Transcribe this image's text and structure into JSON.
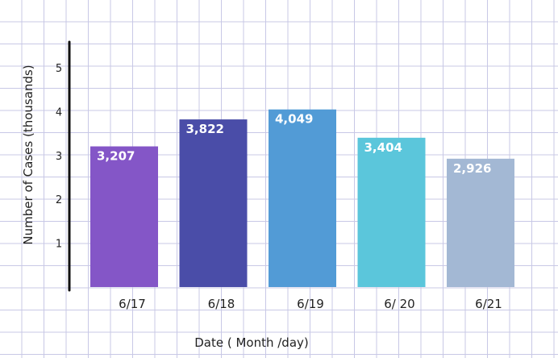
{
  "chart_data": {
    "type": "bar",
    "title": "",
    "xlabel": "Date ( Month /day)",
    "ylabel": "Number of Cases (thousands)",
    "ylim": [
      0,
      5
    ],
    "yticks": [
      "1",
      "2",
      "3",
      "4",
      "5"
    ],
    "categories": [
      "6/17",
      "6/18",
      "6/19",
      "6/ 20",
      "6/21"
    ],
    "values": [
      3.207,
      3.822,
      4.049,
      3.404,
      2.926
    ],
    "data_labels": [
      "3,207",
      "3,822",
      "4,049",
      "3,404",
      "2,926"
    ],
    "colors": [
      "#8456c7",
      "#4a4da8",
      "#529bd6",
      "#5bc6db",
      "#a3b8d4"
    ],
    "grid": true,
    "grid_color": "#c8c8e6",
    "legend": "none"
  }
}
